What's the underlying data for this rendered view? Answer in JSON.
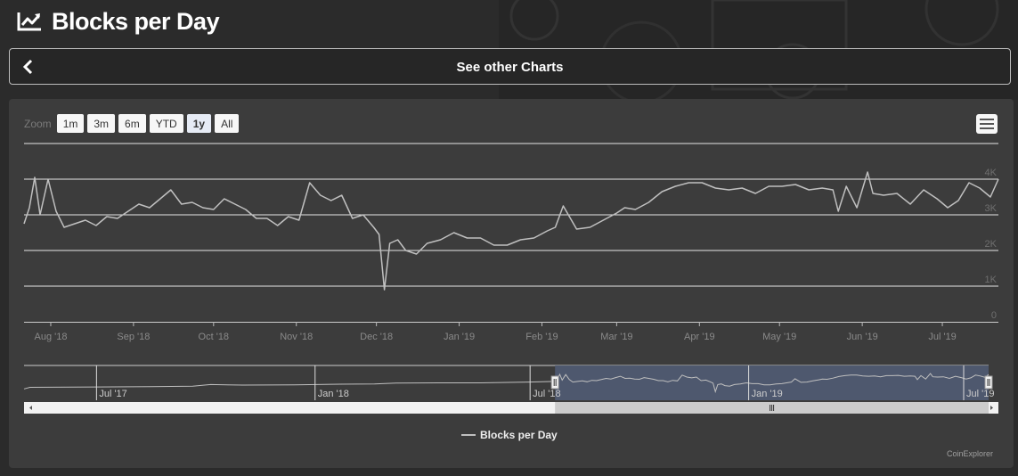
{
  "page": {
    "title": "Blocks per Day",
    "title_icon": "line-chart-icon"
  },
  "nav": {
    "back_icon": "chevron-left-icon",
    "label": "See other Charts"
  },
  "zoom": {
    "label": "Zoom",
    "buttons": [
      "1m",
      "3m",
      "6m",
      "YTD",
      "1y",
      "All"
    ],
    "active": "1y"
  },
  "menu": {
    "icon": "hamburger-menu-icon"
  },
  "legend": {
    "series_name": "Blocks per Day"
  },
  "credits": {
    "text": "CoinExplorer"
  },
  "colors": {
    "series_line": "#c0c0c0",
    "navigator_mask": "#4f5a71",
    "gridline": "#e6e6e6"
  },
  "chart_data": {
    "type": "line",
    "title": "",
    "xlabel": "",
    "ylabel": "",
    "ylim": [
      0,
      5000
    ],
    "y_ticks": [
      0,
      1000,
      2000,
      3000,
      4000
    ],
    "y_tick_labels": [
      "0",
      "1K",
      "2K",
      "3K",
      "4K"
    ],
    "x_tick_labels": [
      "Aug '18",
      "Sep '18",
      "Oct '18",
      "Nov '18",
      "Dec '18",
      "Jan '19",
      "Feb '19",
      "Mar '19",
      "Apr '19",
      "May '19",
      "Jun '19",
      "Jul '19"
    ],
    "x_tick_dates": [
      "2018-08-01",
      "2018-09-01",
      "2018-10-01",
      "2018-11-01",
      "2018-12-01",
      "2019-01-01",
      "2019-02-01",
      "2019-03-01",
      "2019-04-01",
      "2019-05-01",
      "2019-06-01",
      "2019-07-01"
    ],
    "xrange": [
      "2018-07-22",
      "2019-07-22"
    ],
    "grid": true,
    "legend_position": "bottom-center",
    "series": [
      {
        "name": "Blocks per Day",
        "x": [
          "2018-07-22",
          "2018-07-24",
          "2018-07-26",
          "2018-07-28",
          "2018-07-31",
          "2018-08-03",
          "2018-08-06",
          "2018-08-10",
          "2018-08-14",
          "2018-08-18",
          "2018-08-22",
          "2018-08-26",
          "2018-08-30",
          "2018-09-03",
          "2018-09-07",
          "2018-09-11",
          "2018-09-15",
          "2018-09-19",
          "2018-09-23",
          "2018-09-27",
          "2018-10-01",
          "2018-10-05",
          "2018-10-09",
          "2018-10-13",
          "2018-10-17",
          "2018-10-21",
          "2018-10-25",
          "2018-10-29",
          "2018-11-02",
          "2018-11-06",
          "2018-11-10",
          "2018-11-14",
          "2018-11-18",
          "2018-11-22",
          "2018-11-26",
          "2018-11-30",
          "2018-12-02",
          "2018-12-04",
          "2018-12-06",
          "2018-12-09",
          "2018-12-12",
          "2018-12-16",
          "2018-12-20",
          "2018-12-25",
          "2018-12-30",
          "2019-01-04",
          "2019-01-09",
          "2019-01-14",
          "2019-01-19",
          "2019-01-24",
          "2019-01-29",
          "2019-02-03",
          "2019-02-06",
          "2019-02-09",
          "2019-02-14",
          "2019-02-19",
          "2019-02-24",
          "2019-03-01",
          "2019-03-04",
          "2019-03-08",
          "2019-03-13",
          "2019-03-18",
          "2019-03-23",
          "2019-03-28",
          "2019-04-02",
          "2019-04-07",
          "2019-04-12",
          "2019-04-17",
          "2019-04-22",
          "2019-04-27",
          "2019-05-02",
          "2019-05-07",
          "2019-05-12",
          "2019-05-17",
          "2019-05-21",
          "2019-05-23",
          "2019-05-26",
          "2019-05-30",
          "2019-06-03",
          "2019-06-05",
          "2019-06-09",
          "2019-06-14",
          "2019-06-19",
          "2019-06-24",
          "2019-06-29",
          "2019-07-03",
          "2019-07-07",
          "2019-07-11",
          "2019-07-15",
          "2019-07-19",
          "2019-07-22"
        ],
        "values": [
          2750,
          3200,
          4050,
          3000,
          4000,
          3100,
          2650,
          2750,
          2850,
          2700,
          2950,
          2900,
          3100,
          3300,
          3200,
          3450,
          3700,
          3300,
          3350,
          3200,
          3150,
          3450,
          3300,
          3150,
          2900,
          2900,
          2700,
          2950,
          2850,
          3900,
          3550,
          3400,
          3550,
          2900,
          3000,
          2650,
          2450,
          900,
          2200,
          2300,
          2000,
          1900,
          2200,
          2300,
          2500,
          2350,
          2350,
          2150,
          2150,
          2300,
          2350,
          2550,
          2650,
          3250,
          2600,
          2650,
          2850,
          3050,
          3200,
          3150,
          3350,
          3650,
          3800,
          3900,
          3900,
          3750,
          3700,
          3750,
          3600,
          3800,
          3800,
          3850,
          3700,
          3750,
          3700,
          3100,
          3800,
          3200,
          4200,
          3600,
          3550,
          3600,
          3300,
          3700,
          3450,
          3200,
          3400,
          3900,
          3750,
          3500,
          4000
        ]
      }
    ]
  }
}
